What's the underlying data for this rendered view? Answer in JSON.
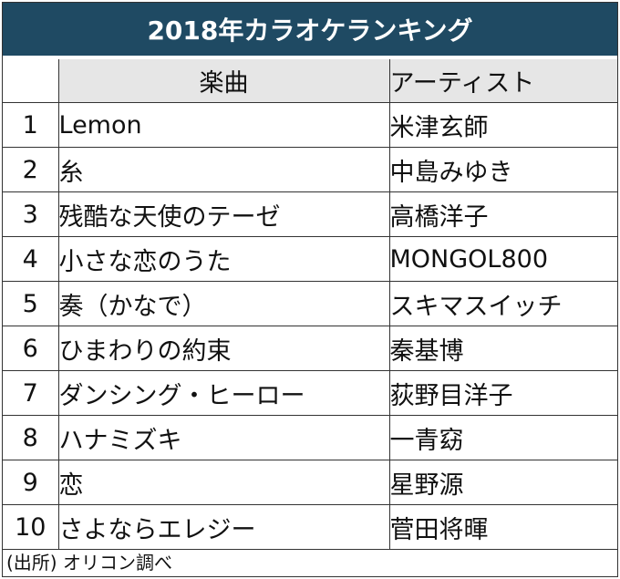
{
  "title": "2018年カラオケランキング",
  "table": {
    "headers": {
      "rank": "",
      "song": "楽曲",
      "artist": "アーティスト"
    },
    "rows": [
      {
        "rank": "1",
        "song": "Lemon",
        "artist": "米津玄師"
      },
      {
        "rank": "2",
        "song": "糸",
        "artist": "中島みゆき"
      },
      {
        "rank": "3",
        "song": "残酷な天使のテーゼ",
        "artist": "高橋洋子"
      },
      {
        "rank": "4",
        "song": "小さな恋のうた",
        "artist": "MONGOL800"
      },
      {
        "rank": "5",
        "song": "奏（かなで）",
        "artist": "スキマスイッチ"
      },
      {
        "rank": "6",
        "song": "ひまわりの約束",
        "artist": "秦基博"
      },
      {
        "rank": "7",
        "song": "ダンシング・ヒーロー",
        "artist": "荻野目洋子"
      },
      {
        "rank": "8",
        "song": "ハナミズキ",
        "artist": "一青窈"
      },
      {
        "rank": "9",
        "song": "恋",
        "artist": "星野源"
      },
      {
        "rank": "10",
        "song": "さよならエレジー",
        "artist": "菅田将暉"
      }
    ]
  },
  "source": "(出所) オリコン調べ",
  "colors": {
    "title_background": "#1f4a63",
    "header_background": "#e6e6e6",
    "border": "#333333"
  }
}
